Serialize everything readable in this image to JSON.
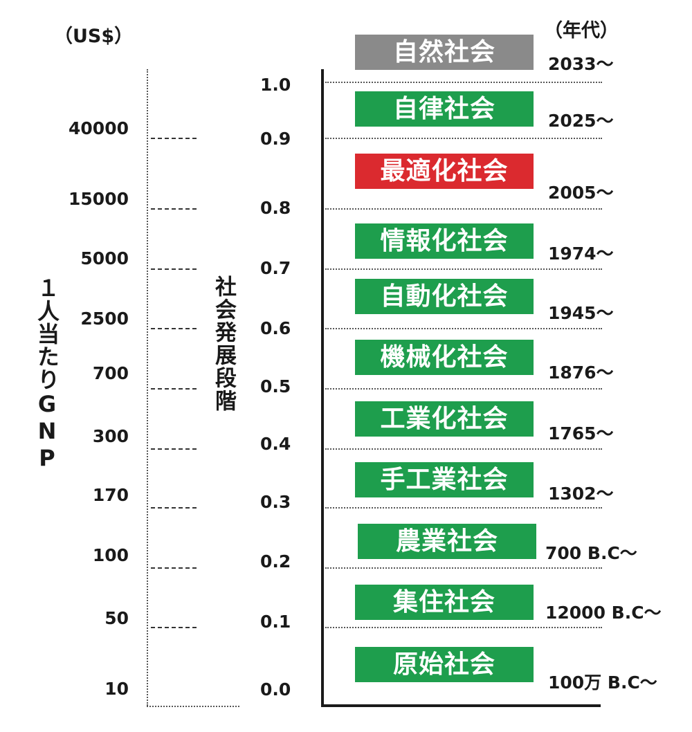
{
  "labels": {
    "gnp_unit": "（US$）",
    "era_unit": "（年代）",
    "gnp_title": "１人当たりGNP",
    "stage_title": "社会発展段階"
  },
  "colors": {
    "green": "#1e9e4d",
    "red": "#db2a2f",
    "gray": "#8a8a8a",
    "axis": "#1a1a1a"
  },
  "gnp_levels": [
    {
      "value": "40000",
      "stage": "0.9"
    },
    {
      "value": "15000",
      "stage": "0.8"
    },
    {
      "value": "5000",
      "stage": "0.7"
    },
    {
      "value": "2500",
      "stage": "0.6"
    },
    {
      "value": "700",
      "stage": "0.5"
    },
    {
      "value": "300",
      "stage": "0.4"
    },
    {
      "value": "170",
      "stage": "0.3"
    },
    {
      "value": "100",
      "stage": "0.2"
    },
    {
      "value": "50",
      "stage": "0.1"
    },
    {
      "value": "10",
      "stage": "0.0"
    }
  ],
  "stage_values": [
    "1.0",
    "0.9",
    "0.8",
    "0.7",
    "0.6",
    "0.5",
    "0.4",
    "0.3",
    "0.2",
    "0.1",
    "0.0"
  ],
  "societies": [
    {
      "name": "自然社会",
      "era": "2033～",
      "color": "gray"
    },
    {
      "name": "自律社会",
      "era": "2025～",
      "color": "green"
    },
    {
      "name": "最適化社会",
      "era": "2005～",
      "color": "red"
    },
    {
      "name": "情報化社会",
      "era": "1974～",
      "color": "green"
    },
    {
      "name": "自動化社会",
      "era": "1945～",
      "color": "green"
    },
    {
      "name": "機械化社会",
      "era": "1876～",
      "color": "green"
    },
    {
      "name": "工業化社会",
      "era": "1765～",
      "color": "green"
    },
    {
      "name": "手工業社会",
      "era": "1302～",
      "color": "green"
    },
    {
      "name": "農業社会",
      "era": "700 B.C～",
      "color": "green"
    },
    {
      "name": "集住社会",
      "era": "12000 B.C～",
      "color": "green"
    },
    {
      "name": "原始社会",
      "era": "100万 B.C～",
      "color": "green"
    }
  ]
}
